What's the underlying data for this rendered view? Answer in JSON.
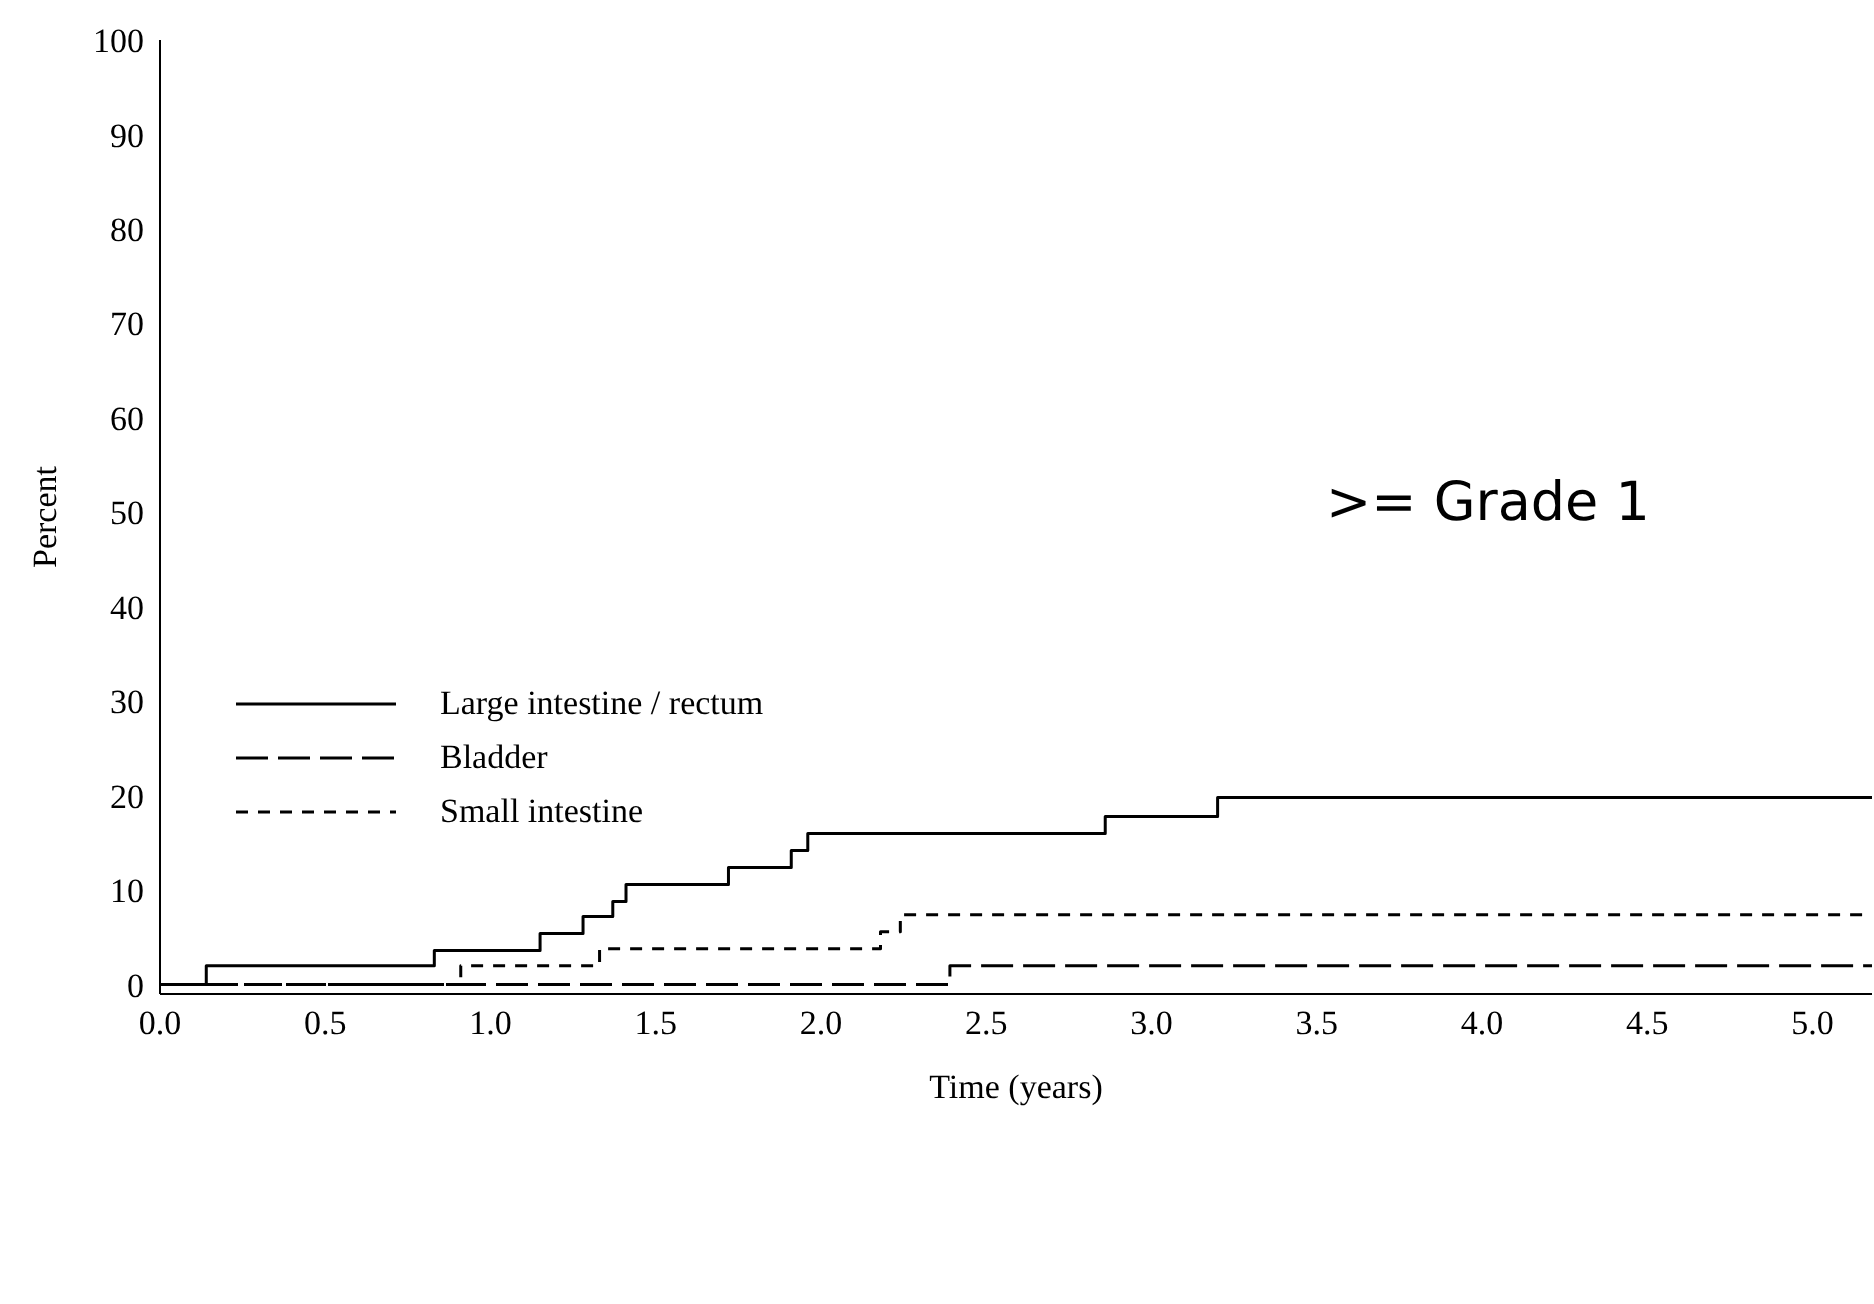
{
  "chart_data": {
    "type": "step",
    "xlabel": "Time (years)",
    "ylabel": "Percent",
    "annotations": [
      ">= Grade 1"
    ],
    "xlim": [
      0,
      5.18
    ],
    "xticks": [
      {
        "value": 0,
        "label": "0.0"
      },
      {
        "value": 0.5,
        "label": "0.5"
      },
      {
        "value": 1,
        "label": "1.0"
      },
      {
        "value": 1.5,
        "label": "1.5"
      },
      {
        "value": 2,
        "label": "2.0"
      },
      {
        "value": 2.5,
        "label": "2.5"
      },
      {
        "value": 3,
        "label": "3.0"
      },
      {
        "value": 3.5,
        "label": "3.5"
      },
      {
        "value": 4,
        "label": "4.0"
      },
      {
        "value": 4.5,
        "label": "4.5"
      },
      {
        "value": 5,
        "label": "5.0"
      }
    ],
    "ylim": [
      -1,
      100
    ],
    "yticks": [
      0,
      10,
      20,
      30,
      40,
      50,
      60,
      70,
      80,
      90,
      100
    ],
    "legend": "left",
    "marker": "none",
    "series": [
      {
        "name": "Large intestine / rectum",
        "color": "#000000",
        "line_style": "solid",
        "x": [
          0,
          0.14,
          0.83,
          1.15,
          1.28,
          1.37,
          1.41,
          1.72,
          1.91,
          1.96,
          2.86,
          3.2,
          5.18
        ],
        "values": [
          0,
          2,
          3.6,
          5.4,
          7.2,
          8.8,
          10.6,
          12.4,
          14.2,
          16,
          17.8,
          19.8,
          19.8
        ]
      },
      {
        "name": "Bladder",
        "color": "#000000",
        "line_style": "dashed",
        "x": [
          0,
          2.39,
          5.18
        ],
        "values": [
          0,
          2,
          2
        ]
      },
      {
        "name": "Small intestine",
        "color": "#000000",
        "line_style": "dashed",
        "x": [
          0,
          0.91,
          1.33,
          2.18,
          2.24,
          5.18
        ],
        "values": [
          0,
          2,
          3.8,
          5.6,
          7.4,
          7.4
        ]
      }
    ]
  }
}
